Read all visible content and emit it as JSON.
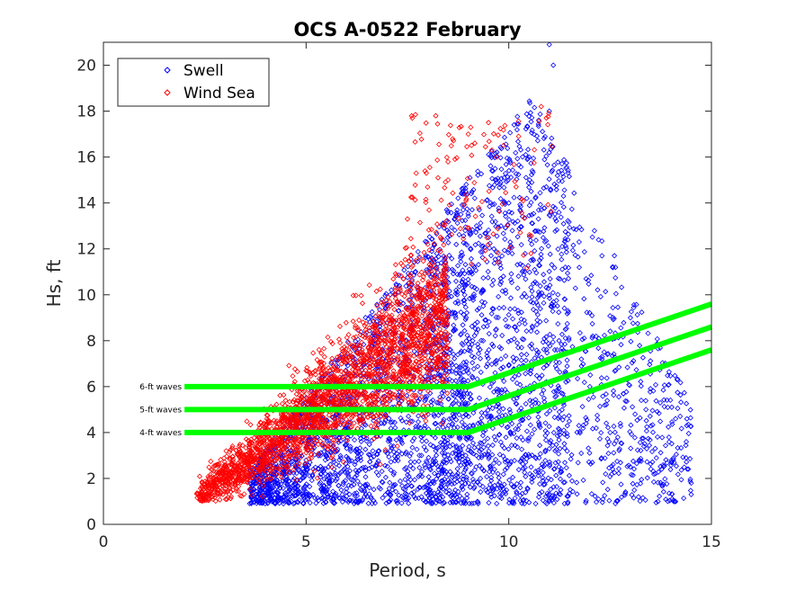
{
  "chart_data": {
    "type": "scatter",
    "title": "OCS A-0522 February",
    "xlabel": "Period, s",
    "ylabel": "Hs, ft",
    "xlim": [
      0,
      15
    ],
    "ylim": [
      0,
      21
    ],
    "xticks": [
      0,
      5,
      10,
      15
    ],
    "yticks": [
      0,
      2,
      4,
      6,
      8,
      10,
      12,
      14,
      16,
      18,
      20
    ],
    "grid": false,
    "legend_position": "top-left",
    "series": [
      {
        "name": "Swell",
        "color": "#0000ff",
        "marker": "diamond-open",
        "approx_count": 3500,
        "period_range": [
          3.5,
          14.7
        ],
        "hs_range": [
          0.9,
          20.9
        ],
        "sample_points": [
          [
            3.8,
            1.2
          ],
          [
            4.5,
            1.8
          ],
          [
            5.0,
            2.5
          ],
          [
            5.5,
            3.0
          ],
          [
            6.0,
            3.5
          ],
          [
            6.5,
            4.0
          ],
          [
            7.0,
            5.0
          ],
          [
            7.5,
            6.0
          ],
          [
            8.0,
            7.5
          ],
          [
            8.5,
            9.0
          ],
          [
            9.0,
            10.5
          ],
          [
            9.5,
            12.5
          ],
          [
            10.0,
            14.0
          ],
          [
            10.5,
            16.0
          ],
          [
            11.0,
            18.0
          ],
          [
            11.1,
            20.0
          ],
          [
            11.0,
            20.9
          ],
          [
            12.0,
            6.0
          ],
          [
            12.5,
            4.0
          ],
          [
            13.0,
            2.5
          ],
          [
            13.2,
            1.2
          ],
          [
            14.5,
            1.3
          ],
          [
            14.5,
            1.8
          ],
          [
            12.3,
            11.7
          ],
          [
            13.0,
            9.0
          ],
          [
            9.3,
            2.0
          ],
          [
            10.2,
            5.5
          ],
          [
            8.2,
            3.2
          ]
        ]
      },
      {
        "name": "Wind Sea",
        "color": "#ff0000",
        "marker": "diamond-open",
        "approx_count": 2500,
        "period_range": [
          2.3,
          11.2
        ],
        "hs_range": [
          1.0,
          18.2
        ],
        "sample_points": [
          [
            2.4,
            1.3
          ],
          [
            2.8,
            1.8
          ],
          [
            3.2,
            2.4
          ],
          [
            3.6,
            2.8
          ],
          [
            4.0,
            3.2
          ],
          [
            4.4,
            3.8
          ],
          [
            4.8,
            4.5
          ],
          [
            5.2,
            5.3
          ],
          [
            5.6,
            6.3
          ],
          [
            6.0,
            7.2
          ],
          [
            6.4,
            8.2
          ],
          [
            6.8,
            9.2
          ],
          [
            7.2,
            10.2
          ],
          [
            7.6,
            11.2
          ],
          [
            8.0,
            12.2
          ],
          [
            8.5,
            15.0
          ],
          [
            9.0,
            17.0
          ],
          [
            9.5,
            17.5
          ],
          [
            10.8,
            18.2
          ],
          [
            7.5,
            13.3
          ],
          [
            8.2,
            17.8
          ]
        ]
      }
    ],
    "threshold_lines": [
      {
        "label": "6-ft waves",
        "color": "#00ff00",
        "points": [
          [
            2.0,
            6.0
          ],
          [
            9.0,
            6.0
          ],
          [
            15.0,
            9.6
          ]
        ]
      },
      {
        "label": "5-ft waves",
        "color": "#00ff00",
        "points": [
          [
            2.0,
            5.0
          ],
          [
            9.0,
            5.0
          ],
          [
            15.0,
            8.6
          ]
        ]
      },
      {
        "label": "4-ft waves",
        "color": "#00ff00",
        "points": [
          [
            2.0,
            4.0
          ],
          [
            9.0,
            4.0
          ],
          [
            15.0,
            7.6
          ]
        ]
      }
    ]
  }
}
